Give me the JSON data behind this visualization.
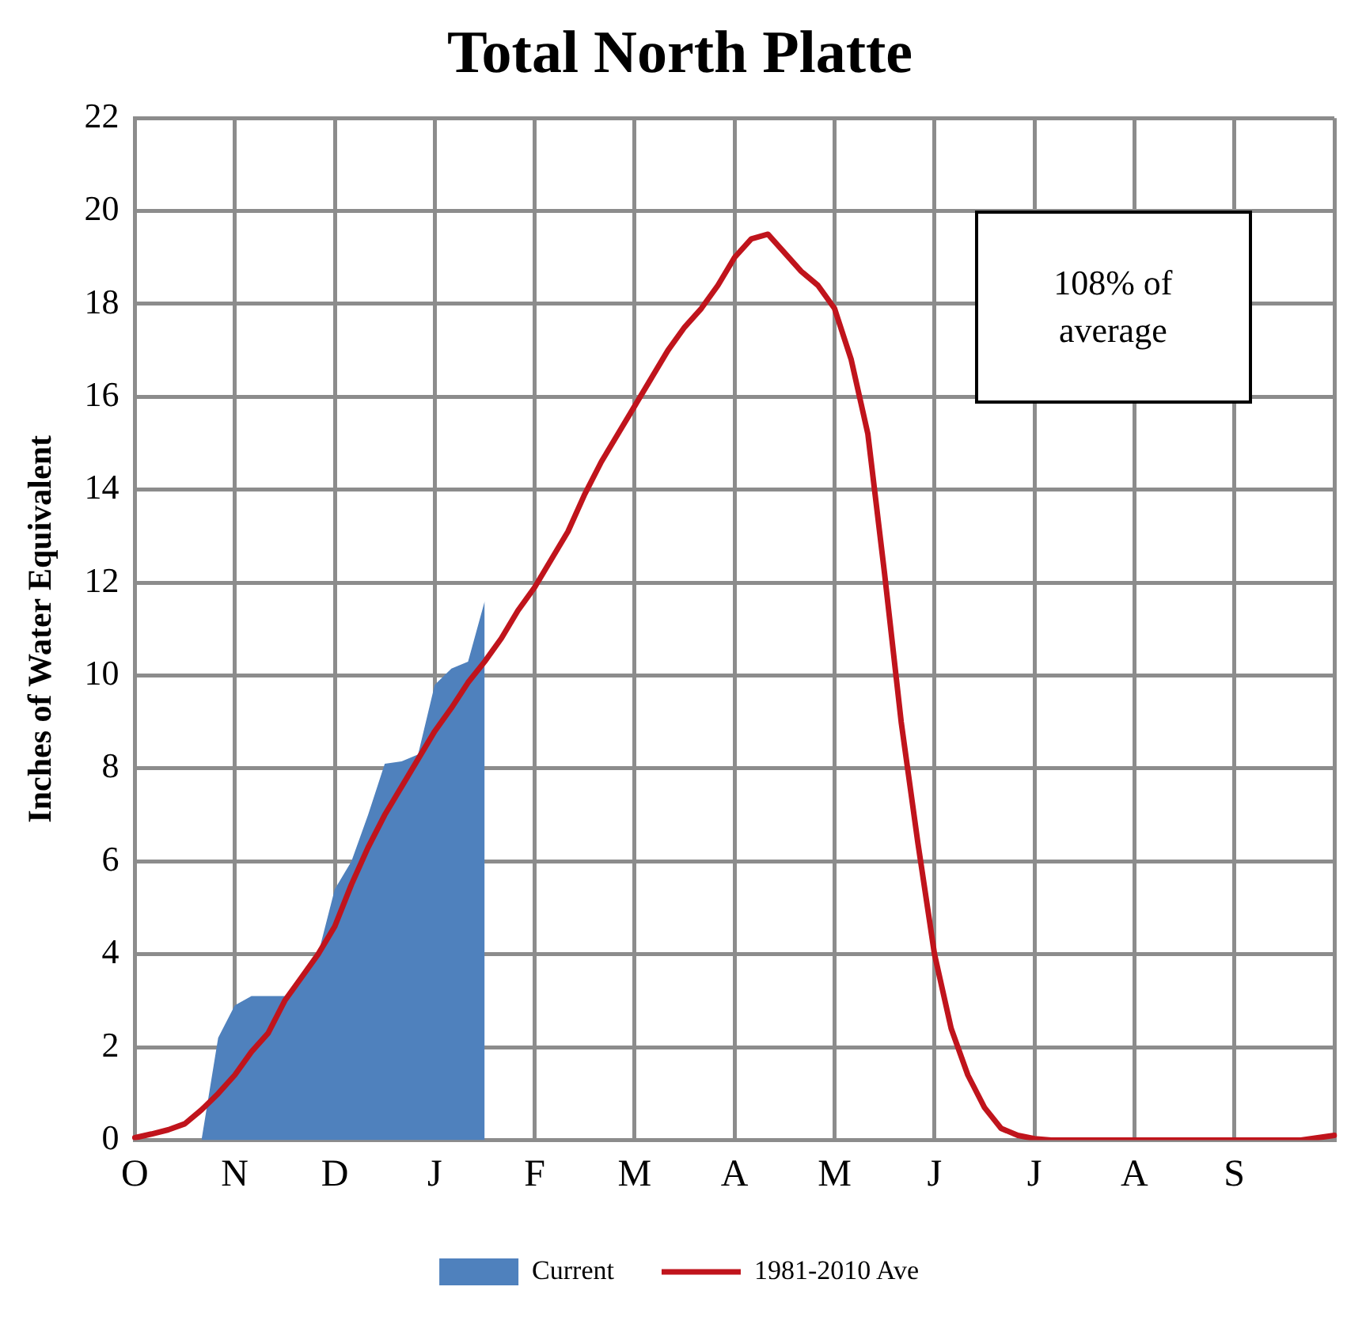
{
  "chart_data": {
    "type": "area",
    "title": "Total North Platte",
    "ylabel": "Inches of Water Equivalent",
    "categories": [
      "O",
      null,
      null,
      null,
      null,
      null,
      "N",
      null,
      null,
      null,
      null,
      null,
      "D",
      null,
      null,
      null,
      null,
      null,
      "J",
      null,
      null,
      null,
      null,
      null,
      "F",
      null,
      null,
      null,
      null,
      null,
      "M",
      null,
      null,
      null,
      null,
      null,
      "A",
      null,
      null,
      null,
      null,
      null,
      "M",
      null,
      null,
      null,
      null,
      null,
      "J",
      null,
      null,
      null,
      null,
      null,
      "J",
      null,
      null,
      null,
      null,
      null,
      "A",
      null,
      null,
      null,
      null,
      null,
      "S",
      null,
      null,
      null,
      null,
      null,
      null
    ],
    "ylim": [
      0,
      22
    ],
    "yticks": [
      0,
      2,
      4,
      6,
      8,
      10,
      12,
      14,
      16,
      18,
      20,
      22
    ],
    "grid": true,
    "legend": "bottom",
    "marker": "none",
    "annotations": [
      "108% of average"
    ],
    "series": [
      {
        "name": "Current",
        "color": "#4f81bd",
        "values": [
          null,
          null,
          null,
          null,
          0,
          2.2,
          2.9,
          3.1,
          3.1,
          3.1,
          3.45,
          4.0,
          5.4,
          6.0,
          7.0,
          8.1,
          8.15,
          8.3,
          9.8,
          10.15,
          10.3,
          11.6,
          null,
          null,
          null,
          null,
          null,
          null,
          null,
          null,
          null,
          null,
          null,
          null,
          null,
          null,
          null,
          null,
          null,
          null,
          null,
          null,
          null,
          null,
          null,
          null,
          null,
          null,
          null,
          null,
          null,
          null,
          null,
          null,
          null,
          null,
          null,
          null,
          null,
          null,
          null,
          null,
          null,
          null,
          null,
          null,
          null,
          null,
          null,
          null,
          null,
          null,
          null
        ]
      },
      {
        "name": "1981-2010 Ave",
        "type": "line",
        "color": "#c0141c",
        "values": [
          0.05,
          0.13,
          0.22,
          0.35,
          0.65,
          1.0,
          1.4,
          1.9,
          2.3,
          3.0,
          3.5,
          4.0,
          4.6,
          5.5,
          6.3,
          7.0,
          7.6,
          8.2,
          8.8,
          9.3,
          9.85,
          10.3,
          10.8,
          11.4,
          11.9,
          12.5,
          13.1,
          13.9,
          14.6,
          15.2,
          15.8,
          16.4,
          17.0,
          17.5,
          17.9,
          18.4,
          19.0,
          19.4,
          19.5,
          19.1,
          18.7,
          18.4,
          17.9,
          16.8,
          15.2,
          12.2,
          9.0,
          6.4,
          4.0,
          2.4,
          1.4,
          0.7,
          0.25,
          0.1,
          0.03,
          0,
          0,
          0,
          0,
          0,
          0,
          0,
          0,
          0,
          0,
          0,
          0,
          0,
          0,
          0,
          0,
          0.05,
          0.1
        ]
      }
    ]
  }
}
